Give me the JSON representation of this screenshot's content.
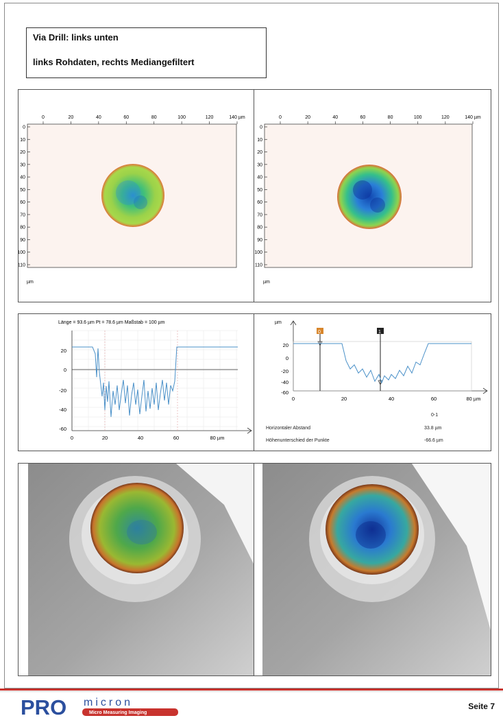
{
  "header": {
    "line1": "Via Drill: links unten",
    "line2": "links Rohdaten, rechts Mediangefiltert"
  },
  "heightmaps": {
    "x_ticks": [
      "0",
      "20",
      "40",
      "60",
      "80",
      "100",
      "120",
      "140 µm"
    ],
    "y_ticks": [
      "0",
      "10",
      "20",
      "30",
      "40",
      "50",
      "60",
      "70",
      "80",
      "90",
      "100",
      "110"
    ],
    "unit": "µm"
  },
  "profile_left": {
    "info": "Länge = 93.6 µm  Pt = 78.6 µm  Maßstab = 100 µm",
    "x_ticks": [
      "0",
      "20",
      "40",
      "60",
      "80 µm"
    ],
    "y_ticks": [
      "20",
      "0",
      "-20",
      "-40",
      "-60"
    ]
  },
  "profile_right": {
    "unit": "µm",
    "marker1": "0",
    "marker2": "1",
    "x_ticks": [
      "0",
      "20",
      "40",
      "60",
      "80 µm"
    ],
    "y_ticks": [
      "20",
      "0",
      "-20",
      "-40",
      "-60"
    ],
    "col_header": "0-1",
    "row1_label": "Horizontaler Abstand",
    "row1_value": "33.8 µm",
    "row2_label": "Höhenunterschied der Punkte",
    "row2_value": "-66.6 µm"
  },
  "colors": {
    "accent": "#c8332e",
    "brand": "#2b4f9e",
    "profile": "#4a90c8"
  },
  "footer": {
    "logo_pro": "PRO",
    "logo_micron": "micron",
    "logo_tagline": "Micro Measuring Imaging",
    "page": "Seite 7"
  }
}
